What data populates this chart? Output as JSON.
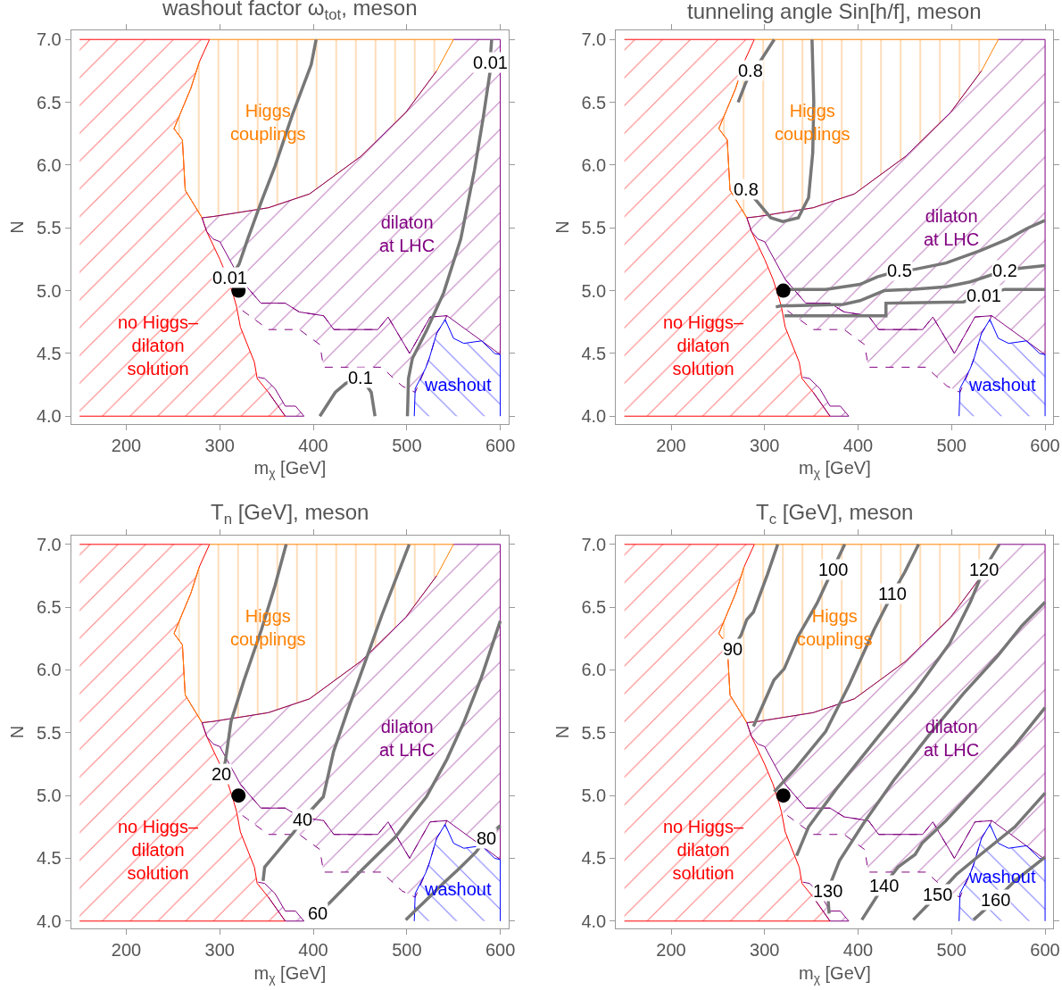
{
  "chart_data": [
    {
      "type": "line",
      "title": "washout factor ω$_{tot}$, meson",
      "xlabel": "m$_{χ}$ [GeV]",
      "ylabel": "N",
      "xlim": [
        141,
        609
      ],
      "ylim": [
        3.94,
        7.07
      ],
      "xticks": [
        200,
        300,
        400,
        500,
        600
      ],
      "yticks": [
        {
          "value": 4,
          "label": "4.0"
        },
        {
          "value": 4.5,
          "label": "4.5"
        },
        {
          "value": 5,
          "label": "5.0"
        },
        {
          "value": 5.5,
          "label": "5.5"
        },
        {
          "value": 6,
          "label": "6.0"
        },
        {
          "value": 6.5,
          "label": "6.5"
        },
        {
          "value": 7,
          "label": "7.0"
        }
      ],
      "series": [
        {
          "type": "area",
          "name": "no Higgs–\ndilaton\nsolution",
          "color": "#ff0000",
          "x": [
            150,
            289,
            278,
            269,
            251,
            260,
            263,
            281,
            286,
            300,
            309,
            315,
            318,
            322,
            337,
            340,
            352,
            370,
            150
          ],
          "values": [
            7,
            7,
            6.82,
            6.61,
            6.29,
            6.2,
            5.8,
            5.58,
            5.47,
            5.25,
            5.09,
            4.95,
            4.87,
            4.71,
            4.43,
            4.3,
            4.19,
            4.0,
            4.0
          ]
        },
        {
          "type": "area",
          "name": "Higgs\ncouplings",
          "color": "#ff8000",
          "x": [
            289,
            550,
            532,
            499,
            451,
            396,
            352,
            293,
            281,
            263,
            260,
            251,
            269,
            278
          ],
          "values": [
            7,
            7,
            6.75,
            6.42,
            6.07,
            5.77,
            5.66,
            5.59,
            5.58,
            5.8,
            6.2,
            6.29,
            6.61,
            6.82
          ]
        },
        {
          "type": "area",
          "name": "dilaton\nat LHC",
          "color": "#800080",
          "x": [
            550,
            600,
            600,
            580,
            543,
            525,
            503,
            480,
            469,
            422,
            411,
            385,
            370,
            344,
            322,
            300,
            293,
            286,
            281,
            293,
            352,
            396,
            451,
            499,
            532
          ],
          "values": [
            7,
            7,
            4.49,
            4.6,
            4.8,
            4.79,
            4.5,
            4.79,
            4.69,
            4.69,
            4.8,
            4.83,
            4.9,
            4.9,
            5.09,
            5.39,
            5.41,
            5.47,
            5.58,
            5.59,
            5.66,
            5.77,
            6.07,
            6.42,
            6.75
          ]
        },
        {
          "type": "area",
          "color": "#800080",
          "line_style": "dashed",
          "x": [
            322,
            344,
            370,
            385,
            411,
            422,
            469,
            480,
            503,
            525,
            543,
            541,
            532,
            524,
            520,
            509,
            495,
            473,
            411,
            407,
            385,
            352,
            330,
            319
          ],
          "values": [
            5.09,
            4.9,
            4.9,
            4.83,
            4.8,
            4.69,
            4.69,
            4.79,
            4.5,
            4.79,
            4.8,
            4.77,
            4.66,
            4.46,
            4.38,
            4.19,
            4.24,
            4.39,
            4.39,
            4.57,
            4.69,
            4.69,
            4.81,
            4.87
          ]
        },
        {
          "type": "area",
          "color": "#800080",
          "x": [
            341,
            348,
            359,
            370,
            381,
            390,
            370,
            352
          ],
          "values": [
            4.31,
            4.3,
            4.22,
            4.08,
            4.08,
            4.0,
            4.0,
            4.19
          ]
        },
        {
          "type": "area",
          "name": "washout",
          "color": "#0000ff",
          "x": [
            508,
            509,
            520,
            524,
            532,
            541,
            550,
            561,
            580,
            594,
            600,
            600
          ],
          "values": [
            4.0,
            4.22,
            4.38,
            4.46,
            4.66,
            4.77,
            4.62,
            4.58,
            4.6,
            4.5,
            4.49,
            4.0
          ]
        },
        {
          "color": "#777777",
          "x": [
            311,
            320.6,
            329.8,
            344.5,
            359,
            377.6,
            397.8,
            403
          ],
          "values": [
            5.1,
            5.21,
            5.41,
            5.71,
            5.99,
            6.4,
            6.8,
            7.0
          ]
        },
        {
          "color": "#777777",
          "x": [
            590.8,
            589,
            589,
            581.6,
            572.4,
            557.7,
            539.3,
            521,
            506,
            501.8,
            500.7
          ],
          "values": [
            7.0,
            6.82,
            6.74,
            6.37,
            5.96,
            5.41,
            4.98,
            4.68,
            4.46,
            4.3,
            4.0
          ]
        },
        {
          "color": "#777777",
          "x": [
            407,
            423.5,
            434.6,
            451,
            462,
            466
          ],
          "values": [
            4.0,
            4.19,
            4.26,
            4.31,
            4.19,
            4.0
          ]
        },
        {
          "type": "scatter",
          "color": "#000000",
          "marker": "circle",
          "x": [
            320
          ],
          "values": [
            5.0
          ]
        }
      ],
      "annotations": [
        {
          "text": "0.01",
          "x": 311,
          "y": 5.1
        },
        {
          "text": "0.01",
          "x": 589,
          "y": 6.82
        },
        {
          "text": "0.1",
          "x": 451,
          "y": 4.31
        }
      ]
    },
    {
      "type": "line",
      "title": "tunneling angle Sin[h/f], meson",
      "xlabel": "m$_{χ}$ [GeV]",
      "ylabel": "N",
      "xlim": [
        141,
        609
      ],
      "ylim": [
        3.94,
        7.07
      ],
      "xticks": [
        200,
        300,
        400,
        500,
        600
      ],
      "yticks": [
        {
          "value": 4,
          "label": "4.0"
        },
        {
          "value": 4.5,
          "label": "4.5"
        },
        {
          "value": 5,
          "label": "5.0"
        },
        {
          "value": 5.5,
          "label": "5.5"
        },
        {
          "value": 6,
          "label": "6.0"
        },
        {
          "value": 6.5,
          "label": "6.5"
        },
        {
          "value": 7,
          "label": "7.0"
        }
      ],
      "series": [
        {
          "type": "area",
          "name": "no Higgs–\ndilaton\nsolution",
          "color": "#ff0000",
          "x": [
            150,
            289,
            278,
            269,
            251,
            260,
            263,
            281,
            286,
            300,
            309,
            315,
            318,
            322,
            337,
            340,
            352,
            370,
            150
          ],
          "values": [
            7,
            7,
            6.82,
            6.61,
            6.29,
            6.2,
            5.8,
            5.58,
            5.47,
            5.25,
            5.09,
            4.95,
            4.87,
            4.71,
            4.43,
            4.3,
            4.19,
            4.0,
            4.0
          ]
        },
        {
          "type": "area",
          "name": "Higgs\ncouplings",
          "color": "#ff8000",
          "x": [
            289,
            550,
            532,
            499,
            451,
            396,
            352,
            293,
            281,
            263,
            260,
            251,
            269,
            278
          ],
          "values": [
            7,
            7,
            6.75,
            6.42,
            6.07,
            5.77,
            5.66,
            5.59,
            5.58,
            5.8,
            6.2,
            6.29,
            6.61,
            6.82
          ]
        },
        {
          "type": "area",
          "name": "dilaton\nat LHC",
          "color": "#800080",
          "x": [
            550,
            600,
            600,
            580,
            543,
            525,
            503,
            480,
            469,
            422,
            411,
            385,
            370,
            344,
            322,
            300,
            293,
            286,
            281,
            293,
            352,
            396,
            451,
            499,
            532
          ],
          "values": [
            7,
            7,
            4.49,
            4.6,
            4.8,
            4.79,
            4.5,
            4.79,
            4.69,
            4.69,
            4.8,
            4.83,
            4.9,
            4.9,
            5.09,
            5.39,
            5.41,
            5.47,
            5.58,
            5.59,
            5.66,
            5.77,
            6.07,
            6.42,
            6.75
          ]
        },
        {
          "type": "area",
          "color": "#800080",
          "line_style": "dashed",
          "x": [
            322,
            344,
            370,
            385,
            411,
            422,
            469,
            480,
            503,
            525,
            543,
            541,
            532,
            524,
            520,
            509,
            495,
            473,
            411,
            407,
            385,
            352,
            330,
            319
          ],
          "values": [
            5.09,
            4.9,
            4.9,
            4.83,
            4.8,
            4.69,
            4.69,
            4.79,
            4.5,
            4.79,
            4.8,
            4.77,
            4.66,
            4.46,
            4.38,
            4.19,
            4.24,
            4.39,
            4.39,
            4.57,
            4.69,
            4.69,
            4.81,
            4.87
          ]
        },
        {
          "type": "area",
          "color": "#800080",
          "x": [
            341,
            348,
            359,
            370,
            381,
            390,
            370,
            352
          ],
          "values": [
            4.31,
            4.3,
            4.22,
            4.08,
            4.08,
            4.0,
            4.0,
            4.19
          ]
        },
        {
          "type": "area",
          "name": "washout",
          "color": "#0000ff",
          "x": [
            508,
            509,
            520,
            524,
            532,
            541,
            550,
            561,
            580,
            594,
            600,
            600
          ],
          "values": [
            4.0,
            4.22,
            4.38,
            4.46,
            4.66,
            4.77,
            4.62,
            4.58,
            4.6,
            4.5,
            4.49,
            4.0
          ]
        },
        {
          "color": "#777777",
          "x": [
            310.3,
            295.6,
            285.3,
            279,
            271.7
          ],
          "values": [
            7.0,
            6.83,
            6.75,
            6.64,
            6.5
          ]
        },
        {
          "color": "#777777",
          "x": [
            350.7,
            352.6,
            351.5,
            347,
            336,
            319.5,
            306.6,
            291.9,
            280
          ],
          "values": [
            7.0,
            6.5,
            6.1,
            5.74,
            5.58,
            5.55,
            5.58,
            5.71,
            5.81
          ]
        },
        {
          "color": "#777777",
          "x": [
            321.3,
            332.4,
            365.4,
            402,
            420.6,
            444.5,
            461,
            494,
            531,
            560,
            582,
            600
          ],
          "values": [
            5.01,
            5.01,
            5.01,
            5.05,
            5.11,
            5.16,
            5.17,
            5.22,
            5.32,
            5.41,
            5.5,
            5.56
          ]
        },
        {
          "color": "#777777",
          "x": [
            312,
            317.6,
            328.7,
            384,
            402,
            428,
            457,
            494,
            520,
            556.6,
            575,
            600
          ],
          "values": [
            4.87,
            4.88,
            4.88,
            4.89,
            4.92,
            5.0,
            5.01,
            5.03,
            5.07,
            5.16,
            5.18,
            5.2
          ]
        },
        {
          "color": "#777777",
          "x": [
            321.3,
            420.6,
            429.8,
            429.8,
            512.5,
            534.6,
            556.6,
            600
          ],
          "values": [
            4.8,
            4.8,
            4.8,
            4.9,
            4.91,
            4.96,
            5.01,
            5.01
          ]
        },
        {
          "type": "scatter",
          "color": "#000000",
          "marker": "circle",
          "x": [
            320
          ],
          "values": [
            5.0
          ]
        }
      ],
      "annotations": [
        {
          "text": "0.8",
          "x": 285.3,
          "y": 6.75
        },
        {
          "text": "0.8",
          "x": 280,
          "y": 5.81
        },
        {
          "text": "0.5",
          "x": 444.5,
          "y": 5.16
        },
        {
          "text": "0.2",
          "x": 556.6,
          "y": 5.16
        },
        {
          "text": "0.01",
          "x": 534.6,
          "y": 4.96
        }
      ]
    },
    {
      "type": "line",
      "title": "T$_{n}$ [GeV], meson",
      "xlabel": "m$_{χ}$ [GeV]",
      "ylabel": "N",
      "xlim": [
        141,
        609
      ],
      "ylim": [
        3.94,
        7.07
      ],
      "xticks": [
        200,
        300,
        400,
        500,
        600
      ],
      "yticks": [
        {
          "value": 4,
          "label": "4.0"
        },
        {
          "value": 4.5,
          "label": "4.5"
        },
        {
          "value": 5,
          "label": "5.0"
        },
        {
          "value": 5.5,
          "label": "5.5"
        },
        {
          "value": 6,
          "label": "6.0"
        },
        {
          "value": 6.5,
          "label": "6.5"
        },
        {
          "value": 7,
          "label": "7.0"
        }
      ],
      "series": [
        {
          "type": "area",
          "name": "no Higgs–\ndilaton\nsolution",
          "color": "#ff0000",
          "x": [
            150,
            289,
            278,
            269,
            251,
            260,
            263,
            281,
            286,
            300,
            309,
            315,
            318,
            322,
            337,
            340,
            352,
            370,
            150
          ],
          "values": [
            7,
            7,
            6.82,
            6.61,
            6.29,
            6.2,
            5.8,
            5.58,
            5.47,
            5.25,
            5.09,
            4.95,
            4.87,
            4.71,
            4.43,
            4.3,
            4.19,
            4.0,
            4.0
          ]
        },
        {
          "type": "area",
          "name": "Higgs\ncouplings",
          "color": "#ff8000",
          "x": [
            289,
            550,
            532,
            499,
            451,
            396,
            352,
            293,
            281,
            263,
            260,
            251,
            269,
            278
          ],
          "values": [
            7,
            7,
            6.75,
            6.42,
            6.07,
            5.77,
            5.66,
            5.59,
            5.58,
            5.8,
            6.2,
            6.29,
            6.61,
            6.82
          ]
        },
        {
          "type": "area",
          "name": "dilaton\nat LHC",
          "color": "#800080",
          "x": [
            550,
            600,
            600,
            580,
            543,
            525,
            503,
            480,
            469,
            422,
            411,
            385,
            370,
            344,
            322,
            300,
            293,
            286,
            281,
            293,
            352,
            396,
            451,
            499,
            532
          ],
          "values": [
            7,
            7,
            4.49,
            4.6,
            4.8,
            4.79,
            4.5,
            4.79,
            4.69,
            4.69,
            4.8,
            4.83,
            4.9,
            4.9,
            5.09,
            5.39,
            5.41,
            5.47,
            5.58,
            5.59,
            5.66,
            5.77,
            6.07,
            6.42,
            6.75
          ]
        },
        {
          "type": "area",
          "color": "#800080",
          "line_style": "dashed",
          "x": [
            322,
            344,
            370,
            385,
            411,
            422,
            469,
            480,
            503,
            525,
            543,
            541,
            532,
            524,
            520,
            509,
            495,
            473,
            411,
            407,
            385,
            352,
            330,
            319
          ],
          "values": [
            5.09,
            4.9,
            4.9,
            4.83,
            4.8,
            4.69,
            4.69,
            4.79,
            4.5,
            4.79,
            4.8,
            4.77,
            4.66,
            4.46,
            4.38,
            4.19,
            4.24,
            4.39,
            4.39,
            4.57,
            4.69,
            4.69,
            4.81,
            4.87
          ]
        },
        {
          "type": "area",
          "color": "#800080",
          "x": [
            341,
            348,
            359,
            370,
            381,
            390,
            370,
            352
          ],
          "values": [
            4.31,
            4.3,
            4.22,
            4.08,
            4.08,
            4.0,
            4.0,
            4.19
          ]
        },
        {
          "type": "area",
          "name": "washout",
          "color": "#0000ff",
          "x": [
            508,
            509,
            520,
            524,
            532,
            541,
            550,
            561,
            580,
            594,
            600,
            600
          ],
          "values": [
            4.0,
            4.22,
            4.38,
            4.46,
            4.66,
            4.77,
            4.62,
            4.58,
            4.6,
            4.5,
            4.49,
            4.0
          ]
        },
        {
          "color": "#777777",
          "x": [
            302,
            305.9,
            312,
            326,
            344.5,
            359,
            371
          ],
          "values": [
            5.17,
            5.27,
            5.59,
            5.92,
            6.32,
            6.67,
            7.0
          ]
        },
        {
          "color": "#777777",
          "x": [
            346.3,
            348,
            359.2,
            379.4,
            388.6,
            399.6,
            410.7,
            421.7,
            436.4,
            454.8,
            473,
            502.6
          ],
          "values": [
            4.32,
            4.43,
            4.53,
            4.71,
            4.81,
            4.9,
            4.99,
            5.35,
            5.67,
            6.05,
            6.43,
            7.0
          ]
        },
        {
          "color": "#777777",
          "x": [
            405,
            418,
            451,
            487.9,
            521,
            543,
            561.4,
            579.8,
            600
          ],
          "values": [
            4.06,
            4.15,
            4.4,
            4.67,
            4.99,
            5.29,
            5.59,
            5.94,
            6.39
          ]
        },
        {
          "color": "#777777",
          "x": [
            498.9,
            521,
            539,
            557.7,
            574,
            585,
            600
          ],
          "values": [
            4.01,
            4.17,
            4.3,
            4.43,
            4.55,
            4.66,
            4.76
          ]
        },
        {
          "type": "scatter",
          "color": "#000000",
          "marker": "circle",
          "x": [
            320
          ],
          "values": [
            5.0
          ]
        }
      ],
      "annotations": [
        {
          "text": "20",
          "x": 302,
          "y": 5.17
        },
        {
          "text": "40",
          "x": 388.6,
          "y": 4.81
        },
        {
          "text": "60",
          "x": 405,
          "y": 4.06
        },
        {
          "text": "80",
          "x": 585,
          "y": 4.66
        }
      ]
    },
    {
      "type": "line",
      "title": "T$_{c}$ [GeV], meson",
      "xlabel": "m$_{χ}$ [GeV]",
      "ylabel": "N",
      "xlim": [
        141,
        609
      ],
      "ylim": [
        3.94,
        7.07
      ],
      "xticks": [
        200,
        300,
        400,
        500,
        600
      ],
      "yticks": [
        {
          "value": 4,
          "label": "4.0"
        },
        {
          "value": 4.5,
          "label": "4.5"
        },
        {
          "value": 5,
          "label": "5.0"
        },
        {
          "value": 5.5,
          "label": "5.5"
        },
        {
          "value": 6,
          "label": "6.0"
        },
        {
          "value": 6.5,
          "label": "6.5"
        },
        {
          "value": 7,
          "label": "7.0"
        }
      ],
      "series": [
        {
          "type": "area",
          "name": "no Higgs–\ndilaton\nsolution",
          "color": "#ff0000",
          "x": [
            150,
            289,
            278,
            269,
            251,
            260,
            263,
            281,
            286,
            300,
            309,
            315,
            318,
            322,
            337,
            340,
            352,
            370,
            150
          ],
          "values": [
            7,
            7,
            6.82,
            6.61,
            6.29,
            6.2,
            5.8,
            5.58,
            5.47,
            5.25,
            5.09,
            4.95,
            4.87,
            4.71,
            4.43,
            4.3,
            4.19,
            4.0,
            4.0
          ]
        },
        {
          "type": "area",
          "name": "Higgs\ncouplings",
          "color": "#ff8000",
          "x": [
            289,
            550,
            532,
            499,
            451,
            396,
            352,
            293,
            281,
            263,
            260,
            251,
            269,
            278
          ],
          "values": [
            7,
            7,
            6.75,
            6.42,
            6.07,
            5.77,
            5.66,
            5.59,
            5.58,
            5.8,
            6.2,
            6.29,
            6.61,
            6.82
          ]
        },
        {
          "type": "area",
          "name": "dilaton\nat LHC",
          "color": "#800080",
          "x": [
            550,
            600,
            600,
            580,
            543,
            525,
            503,
            480,
            469,
            422,
            411,
            385,
            370,
            344,
            322,
            300,
            293,
            286,
            281,
            293,
            352,
            396,
            451,
            499,
            532
          ],
          "values": [
            7,
            7,
            4.49,
            4.6,
            4.8,
            4.79,
            4.5,
            4.79,
            4.69,
            4.69,
            4.8,
            4.83,
            4.9,
            4.9,
            5.09,
            5.39,
            5.41,
            5.47,
            5.58,
            5.59,
            5.66,
            5.77,
            6.07,
            6.42,
            6.75
          ]
        },
        {
          "type": "area",
          "color": "#800080",
          "line_style": "dashed",
          "x": [
            322,
            344,
            370,
            385,
            411,
            422,
            469,
            480,
            503,
            525,
            543,
            541,
            532,
            524,
            520,
            509,
            495,
            473,
            411,
            407,
            385,
            352,
            330,
            319
          ],
          "values": [
            5.09,
            4.9,
            4.9,
            4.83,
            4.8,
            4.69,
            4.69,
            4.79,
            4.5,
            4.79,
            4.8,
            4.77,
            4.66,
            4.46,
            4.38,
            4.19,
            4.24,
            4.39,
            4.39,
            4.57,
            4.69,
            4.69,
            4.81,
            4.87
          ]
        },
        {
          "type": "area",
          "color": "#800080",
          "x": [
            341,
            348,
            359,
            370,
            381,
            390,
            370,
            352
          ],
          "values": [
            4.31,
            4.3,
            4.22,
            4.08,
            4.08,
            4.0,
            4.0,
            4.19
          ]
        },
        {
          "type": "area",
          "name": "washout",
          "color": "#0000ff",
          "x": [
            508,
            509,
            520,
            524,
            532,
            541,
            550,
            561,
            580,
            594,
            600,
            600
          ],
          "values": [
            4.0,
            4.22,
            4.38,
            4.46,
            4.66,
            4.77,
            4.62,
            4.58,
            4.6,
            4.5,
            4.49,
            4.0
          ]
        },
        {
          "color": "#777777",
          "x": [
            314,
            303,
            288,
            280.9,
            275,
            266
          ],
          "values": [
            7.0,
            6.76,
            6.46,
            6.4,
            6.28,
            6.17
          ]
        },
        {
          "color": "#777777",
          "x": [
            288,
            310,
            321,
            336,
            356,
            372.8,
            385.7
          ],
          "values": [
            5.55,
            5.92,
            6.01,
            6.27,
            6.53,
            6.8,
            7.0
          ]
        },
        {
          "color": "#777777",
          "x": [
            310.3,
            332.4,
            365.4,
            391,
            417,
            437,
            450,
            464.7
          ],
          "values": [
            5.03,
            5.21,
            5.51,
            5.89,
            6.32,
            6.61,
            6.78,
            7.0
          ]
        },
        {
          "color": "#777777",
          "x": [
            334.2,
            347,
            376.5,
            420.6,
            461,
            497.8,
            520,
            534.6,
            551
          ],
          "values": [
            4.52,
            4.75,
            5.05,
            5.46,
            5.83,
            6.21,
            6.54,
            6.8,
            7.0
          ]
        },
        {
          "color": "#777777",
          "x": [
            369,
            367.3,
            380,
            406,
            439,
            475.7,
            512.5,
            549,
            575,
            600
          ],
          "values": [
            4.06,
            4.24,
            4.48,
            4.78,
            5.13,
            5.48,
            5.81,
            6.11,
            6.35,
            6.54
          ]
        },
        {
          "color": "#777777",
          "x": [
            404,
            427.2,
            442.6,
            461,
            468.4,
            494,
            531,
            567.6,
            600
          ],
          "values": [
            4.01,
            4.28,
            4.43,
            4.53,
            4.62,
            4.8,
            5.1,
            5.4,
            5.7
          ]
        },
        {
          "color": "#777777",
          "x": [
            459,
            485,
            505,
            531,
            567.6,
            600
          ],
          "values": [
            4.01,
            4.21,
            4.37,
            4.53,
            4.75,
            5.02
          ]
        },
        {
          "color": "#777777",
          "x": [
            523.5,
            547.4,
            567.6,
            600
          ],
          "values": [
            4.01,
            4.17,
            4.32,
            4.51
          ]
        },
        {
          "type": "scatter",
          "color": "#000000",
          "marker": "circle",
          "x": [
            320
          ],
          "values": [
            5.0
          ]
        }
      ],
      "annotations": [
        {
          "text": "90",
          "x": 266,
          "y": 6.17
        },
        {
          "text": "100",
          "x": 372.8,
          "y": 6.8
        },
        {
          "text": "110",
          "x": 437,
          "y": 6.61
        },
        {
          "text": "120",
          "x": 534.6,
          "y": 6.8
        },
        {
          "text": "130",
          "x": 367.3,
          "y": 4.24
        },
        {
          "text": "140",
          "x": 427.2,
          "y": 4.28
        },
        {
          "text": "150",
          "x": 485,
          "y": 4.21
        },
        {
          "text": "160",
          "x": 547.4,
          "y": 4.17
        }
      ]
    }
  ]
}
